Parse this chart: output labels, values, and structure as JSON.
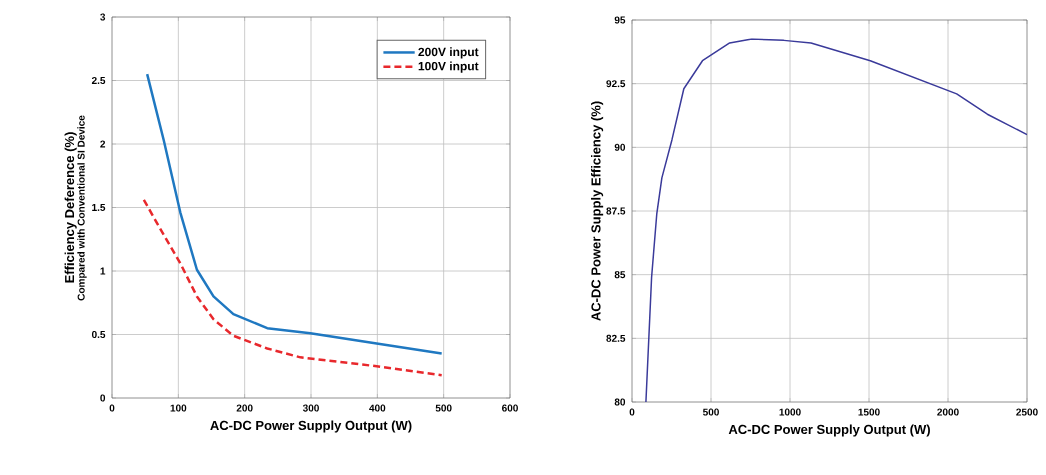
{
  "chart_data": [
    {
      "type": "line",
      "xlabel": "AC-DC Power Supply Output (W)",
      "ylabel": "Efficiency Deference (%)",
      "annotations": [
        "Compared with Conventional SI Device"
      ],
      "xlim": [
        0,
        600
      ],
      "ylim": [
        0,
        3
      ],
      "xticks": [
        0,
        100,
        200,
        300,
        400,
        500,
        600
      ],
      "yticks": [
        0,
        0.5,
        1,
        1.5,
        2,
        2.5,
        3
      ],
      "grid": true,
      "legend": "top right",
      "series": [
        {
          "name": "200V input",
          "color": "#1f78c1",
          "line_style": "solid",
          "x": [
            53,
            78,
            103,
            128,
            153,
            183,
            234,
            299,
            399,
            497
          ],
          "values": [
            2.55,
            2.03,
            1.46,
            1.01,
            0.8,
            0.66,
            0.55,
            0.51,
            0.43,
            0.35
          ]
        },
        {
          "name": "100V input",
          "color": "#e8282c",
          "line_style": "dashed",
          "x": [
            48,
            73,
            103,
            128,
            153,
            183,
            234,
            284,
            399,
            497
          ],
          "values": [
            1.56,
            1.33,
            1.06,
            0.8,
            0.62,
            0.49,
            0.39,
            0.32,
            0.25,
            0.18
          ]
        }
      ]
    },
    {
      "type": "line",
      "xlabel": "AC-DC Power Supply Output (W)",
      "ylabel": "AC-DC Power Supply Efficiency (%)",
      "xlim": [
        0,
        2500
      ],
      "ylim": [
        80,
        95
      ],
      "xticks": [
        0,
        500,
        1000,
        1500,
        2000,
        2500
      ],
      "yticks": [
        80,
        82.5,
        85,
        87.5,
        90,
        92.5,
        95
      ],
      "grid": true,
      "series": [
        {
          "color": "#3a3a9a",
          "line_style": "solid",
          "x": [
            88,
            124,
            157,
            189,
            253,
            328,
            446,
            618,
            758,
            961,
            1133,
            1508,
            2055,
            2249,
            2500
          ],
          "values": [
            80,
            84.9,
            87.4,
            88.8,
            90.3,
            92.3,
            93.4,
            94.1,
            94.25,
            94.2,
            94.1,
            93.4,
            92.1,
            91.3,
            90.5
          ]
        }
      ]
    }
  ]
}
